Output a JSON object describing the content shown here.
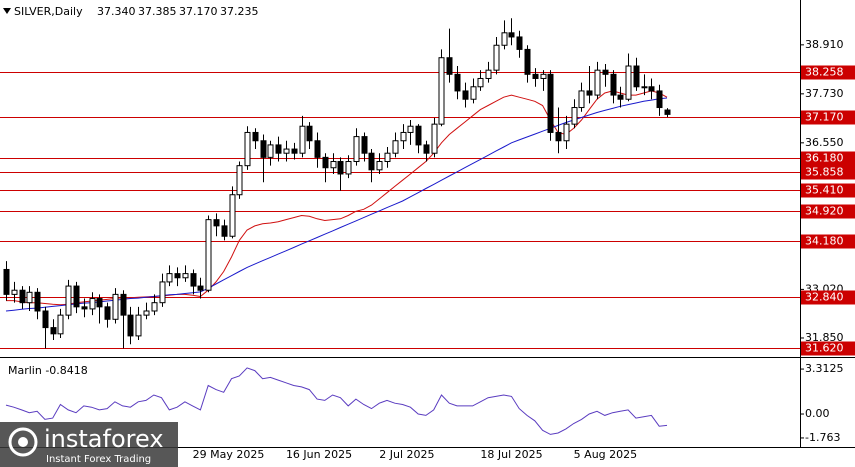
{
  "chart_data": [
    {
      "type": "candlestick",
      "title": "SILVER,Daily",
      "header_values": [
        "37.340",
        "37.385",
        "37.170",
        "37.235"
      ],
      "categories": [
        null,
        null,
        null,
        null,
        null,
        null,
        null,
        null,
        null,
        null,
        null,
        null,
        null,
        null,
        null,
        null,
        null,
        null,
        null,
        null,
        null,
        null,
        null,
        null,
        "29 May 2025",
        null,
        null,
        null,
        null,
        null,
        null,
        null,
        null,
        null,
        null,
        null,
        "16 Jun 2025",
        null,
        null,
        null,
        null,
        null,
        null,
        null,
        null,
        null,
        null,
        null,
        "2 Jul 2025",
        null,
        null,
        null,
        null,
        null,
        null,
        null,
        null,
        null,
        null,
        null,
        null,
        "18 Jul 2025",
        null,
        null,
        null,
        null,
        null,
        null,
        null,
        null,
        null,
        null,
        null,
        "5 Aug 2025",
        null,
        null,
        null,
        null,
        null,
        null,
        null,
        null,
        null,
        null,
        null,
        null
      ],
      "ohlc": [
        [
          33.5,
          33.7,
          32.75,
          32.9
        ],
        [
          32.9,
          33.2,
          32.7,
          33.0
        ],
        [
          33.0,
          33.1,
          32.55,
          32.7
        ],
        [
          32.7,
          33.1,
          32.5,
          32.95
        ],
        [
          32.95,
          33.05,
          32.3,
          32.5
        ],
        [
          32.5,
          32.6,
          31.6,
          32.1
        ],
        [
          32.1,
          32.3,
          31.8,
          31.95
        ],
        [
          31.95,
          32.55,
          31.85,
          32.4
        ],
        [
          32.4,
          33.25,
          32.3,
          33.1
        ],
        [
          33.1,
          33.2,
          32.45,
          32.6
        ],
        [
          32.6,
          32.8,
          32.35,
          32.55
        ],
        [
          32.55,
          32.95,
          32.4,
          32.8
        ],
        [
          32.8,
          32.9,
          32.2,
          32.6
        ],
        [
          32.6,
          32.7,
          32.1,
          32.3
        ],
        [
          32.3,
          33.05,
          32.2,
          32.9
        ],
        [
          32.9,
          33.0,
          31.6,
          32.4
        ],
        [
          32.4,
          32.6,
          31.7,
          31.9
        ],
        [
          31.9,
          32.6,
          31.8,
          32.4
        ],
        [
          32.4,
          32.7,
          32.3,
          32.5
        ],
        [
          32.5,
          32.9,
          32.4,
          32.7
        ],
        [
          32.7,
          33.4,
          32.6,
          33.2
        ],
        [
          33.2,
          33.6,
          33.1,
          33.4
        ],
        [
          33.4,
          33.55,
          33.1,
          33.3
        ],
        [
          33.3,
          33.6,
          33.2,
          33.4
        ],
        [
          33.4,
          33.5,
          32.9,
          33.1
        ],
        [
          33.1,
          33.3,
          32.8,
          33.0
        ],
        [
          33.0,
          34.8,
          32.95,
          34.7
        ],
        [
          34.7,
          34.85,
          34.3,
          34.55
        ],
        [
          34.55,
          34.7,
          34.2,
          34.3
        ],
        [
          34.3,
          35.5,
          34.25,
          35.3
        ],
        [
          35.3,
          36.1,
          35.2,
          36.0
        ],
        [
          36.0,
          36.95,
          35.9,
          36.8
        ],
        [
          36.8,
          36.9,
          36.4,
          36.6
        ],
        [
          36.6,
          36.75,
          35.6,
          36.2
        ],
        [
          36.2,
          36.6,
          36.0,
          36.5
        ],
        [
          36.5,
          36.7,
          36.1,
          36.3
        ],
        [
          36.3,
          36.6,
          36.1,
          36.4
        ],
        [
          36.4,
          36.55,
          36.15,
          36.3
        ],
        [
          36.3,
          37.2,
          36.2,
          36.95
        ],
        [
          36.95,
          37.05,
          36.4,
          36.6
        ],
        [
          36.6,
          36.8,
          35.95,
          36.2
        ],
        [
          36.2,
          36.3,
          35.6,
          35.95
        ],
        [
          35.95,
          36.3,
          35.8,
          36.1
        ],
        [
          36.1,
          36.2,
          35.4,
          35.8
        ],
        [
          35.8,
          36.25,
          35.7,
          36.1
        ],
        [
          36.1,
          36.9,
          36.0,
          36.7
        ],
        [
          36.7,
          36.8,
          36.1,
          36.3
        ],
        [
          36.3,
          36.4,
          35.6,
          35.9
        ],
        [
          35.9,
          36.3,
          35.8,
          36.1
        ],
        [
          36.1,
          36.45,
          35.95,
          36.3
        ],
        [
          36.3,
          36.8,
          36.2,
          36.6
        ],
        [
          36.6,
          37.0,
          36.4,
          36.8
        ],
        [
          36.8,
          37.1,
          36.5,
          36.95
        ],
        [
          36.95,
          37.0,
          36.3,
          36.5
        ],
        [
          36.5,
          36.6,
          36.1,
          36.3
        ],
        [
          36.3,
          37.15,
          36.2,
          37.0
        ],
        [
          37.0,
          38.8,
          36.95,
          38.6
        ],
        [
          38.6,
          39.3,
          38.0,
          38.2
        ],
        [
          38.2,
          38.4,
          37.6,
          37.8
        ],
        [
          37.8,
          38.0,
          37.4,
          37.6
        ],
        [
          37.6,
          38.1,
          37.5,
          37.9
        ],
        [
          37.9,
          38.3,
          37.8,
          38.1
        ],
        [
          38.1,
          38.5,
          38.0,
          38.3
        ],
        [
          38.3,
          39.1,
          38.2,
          38.9
        ],
        [
          38.9,
          39.5,
          38.8,
          39.2
        ],
        [
          39.2,
          39.55,
          38.9,
          39.1
        ],
        [
          39.1,
          39.25,
          38.6,
          38.8
        ],
        [
          38.8,
          38.9,
          38.0,
          38.2
        ],
        [
          38.2,
          38.35,
          37.9,
          38.1
        ],
        [
          38.1,
          38.3,
          37.8,
          38.2
        ],
        [
          38.2,
          38.3,
          36.6,
          36.8
        ],
        [
          36.8,
          37.4,
          36.3,
          36.6
        ],
        [
          36.6,
          37.2,
          36.4,
          37.0
        ],
        [
          37.0,
          37.6,
          36.9,
          37.4
        ],
        [
          37.4,
          38.0,
          37.3,
          37.8
        ],
        [
          37.8,
          38.4,
          37.5,
          37.7
        ],
        [
          37.7,
          38.5,
          37.6,
          38.3
        ],
        [
          38.3,
          38.45,
          37.9,
          38.2
        ],
        [
          38.2,
          38.3,
          37.5,
          37.7
        ],
        [
          37.7,
          37.9,
          37.4,
          37.6
        ],
        [
          37.6,
          38.7,
          37.55,
          38.4
        ],
        [
          38.4,
          38.6,
          37.8,
          37.9
        ],
        [
          37.9,
          38.2,
          37.7,
          37.9
        ],
        [
          37.9,
          38.1,
          37.6,
          37.8
        ],
        [
          37.8,
          37.95,
          37.2,
          37.4
        ],
        [
          37.34,
          37.385,
          37.17,
          37.235
        ]
      ],
      "series": [
        {
          "color": "#d01010",
          "values": [
            32.75,
            32.75,
            32.72,
            32.7,
            32.7,
            32.68,
            32.66,
            32.65,
            32.66,
            32.7,
            32.72,
            32.74,
            32.76,
            32.78,
            32.8,
            32.82,
            32.82,
            32.83,
            32.84,
            32.85,
            32.86,
            32.88,
            32.9,
            32.9,
            32.88,
            32.85,
            33.0,
            33.2,
            33.45,
            33.8,
            34.2,
            34.45,
            34.55,
            34.6,
            34.62,
            34.65,
            34.7,
            34.75,
            34.8,
            34.78,
            34.72,
            34.68,
            34.7,
            34.72,
            34.8,
            34.9,
            34.95,
            35.05,
            35.2,
            35.35,
            35.5,
            35.65,
            35.8,
            35.95,
            36.1,
            36.3,
            36.55,
            36.75,
            36.9,
            37.05,
            37.2,
            37.35,
            37.45,
            37.55,
            37.65,
            37.7,
            37.65,
            37.6,
            37.55,
            37.45,
            37.1,
            36.8,
            36.75,
            36.9,
            37.1,
            37.35,
            37.6,
            37.75,
            37.8,
            37.75,
            37.7,
            37.7,
            37.75,
            37.8,
            37.75,
            37.65
          ]
        },
        {
          "color": "#1a1acc",
          "values": [
            32.5,
            32.52,
            32.54,
            32.56,
            32.57,
            32.59,
            32.61,
            32.63,
            32.65,
            32.67,
            32.69,
            32.7,
            32.72,
            32.74,
            32.76,
            32.78,
            32.8,
            32.81,
            32.83,
            32.85,
            32.87,
            32.89,
            32.9,
            32.92,
            32.94,
            32.96,
            33.05,
            33.15,
            33.25,
            33.35,
            33.45,
            33.55,
            33.63,
            33.71,
            33.79,
            33.87,
            33.95,
            34.03,
            34.11,
            34.19,
            34.27,
            34.35,
            34.43,
            34.51,
            34.59,
            34.67,
            34.75,
            34.83,
            34.91,
            34.99,
            35.07,
            35.15,
            35.25,
            35.35,
            35.45,
            35.55,
            35.65,
            35.75,
            35.85,
            35.95,
            36.05,
            36.15,
            36.25,
            36.35,
            36.45,
            36.55,
            36.62,
            36.69,
            36.76,
            36.83,
            36.9,
            36.97,
            37.04,
            37.1,
            37.16,
            37.22,
            37.28,
            37.33,
            37.38,
            37.43,
            37.47,
            37.51,
            37.55,
            37.58,
            37.61,
            37.63
          ]
        }
      ],
      "up_color": "#ffffff",
      "down_color": "#000000",
      "ylim": [
        31.44,
        39.99
      ],
      "yticks": [
        {
          "value": 38.91,
          "label": "38.910"
        },
        {
          "value": 37.73,
          "label": "37.730"
        },
        {
          "value": 36.55,
          "label": "36.550"
        },
        {
          "value": 33.02,
          "label": "33.020"
        },
        {
          "value": 31.85,
          "label": "31.850"
        }
      ],
      "levels": [
        38.258,
        {
          "value": 37.17,
          "label": "37.170"
        },
        {
          "value": 36.18,
          "label": "36.180"
        },
        35.858,
        {
          "value": 35.41,
          "label": "35.410"
        },
        {
          "value": 34.92,
          "label": "34.920"
        },
        {
          "value": 34.18,
          "label": "34.180"
        },
        {
          "value": 32.84,
          "label": "32.840"
        },
        {
          "value": 31.62,
          "label": "31.620"
        }
      ],
      "level_color": "#cc0000"
    },
    {
      "type": "line",
      "title": "Marlin -0.8418",
      "series": [
        {
          "color": "#5a3cc0",
          "values": [
            0.66,
            0.5,
            0.3,
            0.1,
            0.2,
            -0.4,
            -0.3,
            0.7,
            0.3,
            0.1,
            0.6,
            0.5,
            0.3,
            0.4,
            0.9,
            0.6,
            0.5,
            0.9,
            1.0,
            1.4,
            1.2,
            0.3,
            0.5,
            0.9,
            0.6,
            0.3,
            2.1,
            1.8,
            1.6,
            2.6,
            2.8,
            3.4,
            3.2,
            2.6,
            2.7,
            2.5,
            2.3,
            2.1,
            2.0,
            1.8,
            1.1,
            1.0,
            1.4,
            1.2,
            0.6,
            1.1,
            0.7,
            0.4,
            0.8,
            1.0,
            0.8,
            0.7,
            0.5,
            0.0,
            -0.1,
            0.3,
            1.4,
            0.8,
            0.6,
            0.6,
            0.6,
            0.9,
            1.2,
            1.3,
            1.4,
            1.3,
            0.4,
            -0.1,
            -0.5,
            -1.2,
            -1.5,
            -1.4,
            -1.1,
            -0.7,
            -0.4,
            0.0,
            0.2,
            -0.1,
            0.1,
            0.2,
            0.3,
            -0.3,
            -0.2,
            -0.1,
            -0.9,
            -0.8418
          ]
        }
      ],
      "ylim": [
        -2.43,
        3.98
      ],
      "yticks": [
        3.3125,
        {
          "value": 0,
          "label": "0.00"
        },
        -1.763
      ]
    }
  ],
  "watermark": {
    "brand": "instaforex",
    "slogan": "Instant Forex Trading"
  }
}
